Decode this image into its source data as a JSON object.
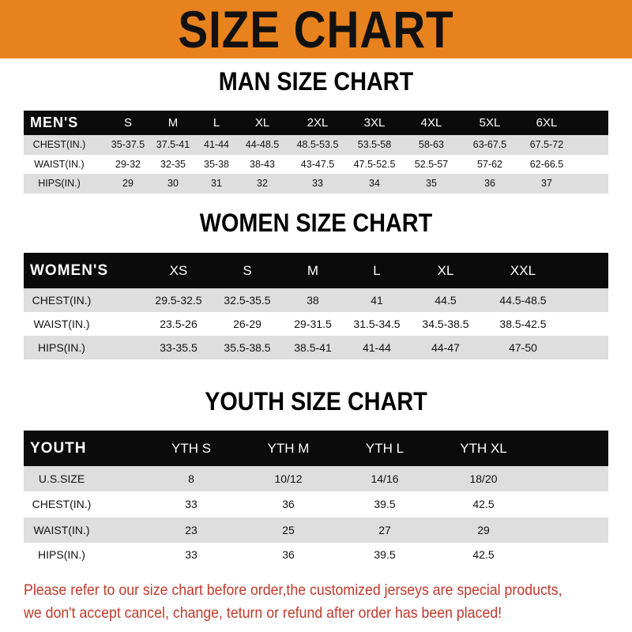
{
  "banner": {
    "title": "SIZE CHART",
    "color": "#e8821e"
  },
  "men": {
    "title": "MAN SIZE CHART",
    "header": [
      "MEN'S",
      "S",
      "M",
      "L",
      "XL",
      "2XL",
      "3XL",
      "4XL",
      "5XL",
      "6XL"
    ],
    "rows": [
      [
        "CHEST(IN.)",
        "35-37.5",
        "37.5-41",
        "41-44",
        "44-48.5",
        "48.5-53.5",
        "53.5-58",
        "58-63",
        "63-67.5",
        "67.5-72"
      ],
      [
        "WAIST(IN.)",
        "29-32",
        "32-35",
        "35-38",
        "38-43",
        "43-47.5",
        "47.5-52.5",
        "52.5-57",
        "57-62",
        "62-66.5"
      ],
      [
        "HIPS(IN.)",
        "29",
        "30",
        "31",
        "32",
        "33",
        "34",
        "35",
        "36",
        "37"
      ]
    ]
  },
  "women": {
    "title": "WOMEN SIZE CHART",
    "header": [
      "WOMEN'S",
      "XS",
      "S",
      "M",
      "L",
      "XL",
      "XXL"
    ],
    "rows": [
      [
        "CHEST(IN.)",
        "29.5-32.5",
        "32.5-35.5",
        "38",
        "41",
        "44.5",
        "44.5-48.5"
      ],
      [
        "WAIST(IN.)",
        "23.5-26",
        "26-29",
        "29-31.5",
        "31.5-34.5",
        "34.5-38.5",
        "38.5-42.5"
      ],
      [
        "HIPS(IN.)",
        "33-35.5",
        "35.5-38.5",
        "38.5-41",
        "41-44",
        "44-47",
        "47-50"
      ]
    ]
  },
  "youth": {
    "title": "YOUTH SIZE CHART",
    "header": [
      "YOUTH",
      "YTH S",
      "YTH M",
      "YTH L",
      "YTH XL"
    ],
    "rows": [
      [
        "U.S.SIZE",
        "8",
        "10/12",
        "14/16",
        "18/20"
      ],
      [
        "CHEST(IN.)",
        "33",
        "36",
        "39.5",
        "42.5"
      ],
      [
        "WAIST(IN.)",
        "23",
        "25",
        "27",
        "29"
      ],
      [
        "HIPS(IN.)",
        "33",
        "36",
        "39.5",
        "42.5"
      ]
    ]
  },
  "footer": {
    "line1": "Please refer to our size chart before order,the customized jerseys are special products,",
    "line2": "we don't accept cancel, change, teturn or refund after order has been placed!",
    "color": "#c0392b"
  }
}
